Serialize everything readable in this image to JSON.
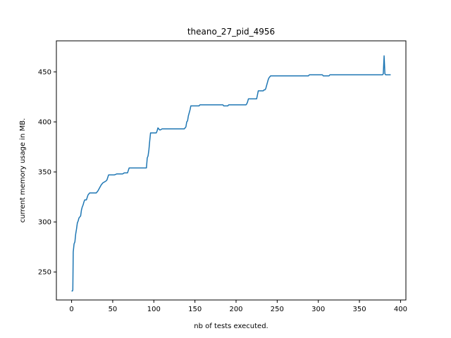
{
  "chart_data": {
    "type": "line",
    "title": "theano_27_pid_4956",
    "xlabel": "nb of tests executed.",
    "ylabel": "current memory usage in MB.",
    "xlim": [
      -18.5,
      406.5
    ],
    "ylim": [
      222,
      481
    ],
    "xticks": [
      0,
      50,
      100,
      150,
      200,
      250,
      300,
      350,
      400
    ],
    "yticks": [
      250,
      300,
      350,
      400,
      450
    ],
    "grid": false,
    "series": [
      {
        "color": "#1f77b4",
        "x": [
          0,
          1,
          1.5,
          2,
          3,
          4,
          5,
          6,
          7,
          8,
          9,
          10,
          11,
          12,
          13,
          14,
          15,
          16,
          18,
          20,
          22,
          25,
          30,
          32,
          34,
          36,
          38,
          40,
          42,
          43,
          45,
          48,
          50,
          52,
          55,
          58,
          60,
          62,
          64,
          66,
          68,
          70,
          75,
          80,
          85,
          90,
          91,
          92,
          93,
          94,
          95,
          96,
          97,
          98,
          100,
          102,
          103,
          104,
          105,
          106,
          107,
          108,
          110,
          115,
          120,
          125,
          130,
          135,
          136,
          137,
          138,
          139,
          140,
          141,
          142,
          143,
          144,
          145,
          147,
          150,
          155,
          156,
          160,
          165,
          170,
          175,
          180,
          183,
          184,
          185,
          190,
          191,
          195,
          200,
          205,
          210,
          212,
          213,
          214,
          215,
          220,
          225,
          226,
          227,
          230,
          233,
          234,
          235,
          236,
          237,
          238,
          239,
          240,
          241,
          242,
          243,
          245,
          250,
          260,
          270,
          280,
          288,
          289,
          290,
          295,
          300,
          305,
          306,
          310,
          313,
          314,
          315,
          320,
          330,
          340,
          350,
          360,
          370,
          375,
          377,
          378,
          379,
          380,
          381,
          382,
          385,
          388
        ],
        "y": [
          231,
          231,
          232,
          270,
          278,
          280,
          288,
          293,
          299,
          301,
          304,
          305,
          306,
          312,
          315,
          317,
          320,
          322,
          322,
          327,
          329,
          329,
          329,
          331,
          334,
          337,
          339,
          340,
          341,
          342,
          347,
          347,
          347,
          347,
          348,
          348,
          348,
          348,
          349,
          349,
          349,
          354,
          354,
          354,
          354,
          354,
          354,
          364,
          366,
          372,
          381,
          389,
          389,
          389,
          389,
          389,
          389,
          391,
          394,
          393,
          392,
          392,
          393,
          393,
          393,
          393,
          393,
          393,
          393,
          393,
          394,
          395,
          400,
          401,
          406,
          409,
          412,
          416,
          416,
          416,
          416,
          417,
          417,
          417,
          417,
          417,
          417,
          417,
          417,
          416,
          416,
          417,
          417,
          417,
          417,
          417,
          417,
          418,
          420,
          423,
          423,
          423,
          427,
          431,
          431,
          431,
          432,
          432,
          433,
          436,
          439,
          442,
          444,
          445,
          446,
          446,
          446,
          446,
          446,
          446,
          446,
          446,
          447,
          447,
          447,
          447,
          447,
          446,
          446,
          446,
          447,
          447,
          447,
          447,
          447,
          447,
          447,
          447,
          447,
          447,
          447,
          448,
          466,
          448,
          447,
          447,
          447
        ]
      }
    ]
  }
}
